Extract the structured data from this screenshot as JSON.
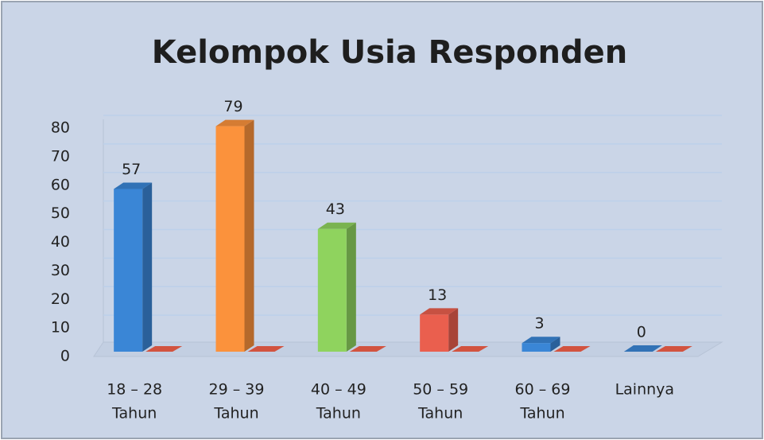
{
  "chart_data": {
    "type": "bar3d",
    "title": "Kelompok Usia Responden",
    "categories": [
      [
        "18 – 28",
        "Tahun"
      ],
      [
        "29 – 39",
        "Tahun"
      ],
      [
        "40 – 49",
        "Tahun"
      ],
      [
        "50 – 59",
        "Tahun"
      ],
      [
        "60 – 69",
        "Tahun"
      ],
      [
        "Lainnya"
      ]
    ],
    "values": [
      57,
      79,
      43,
      13,
      3,
      0
    ],
    "colors": [
      "#3a86d6",
      "#fb923c",
      "#8fd35e",
      "#ea5f4e",
      "#3a86d6",
      "#3a86d6"
    ],
    "ylim": [
      0,
      80
    ],
    "yticks": [
      0,
      10,
      20,
      30,
      40,
      50,
      60,
      70,
      80
    ],
    "grid": true
  }
}
